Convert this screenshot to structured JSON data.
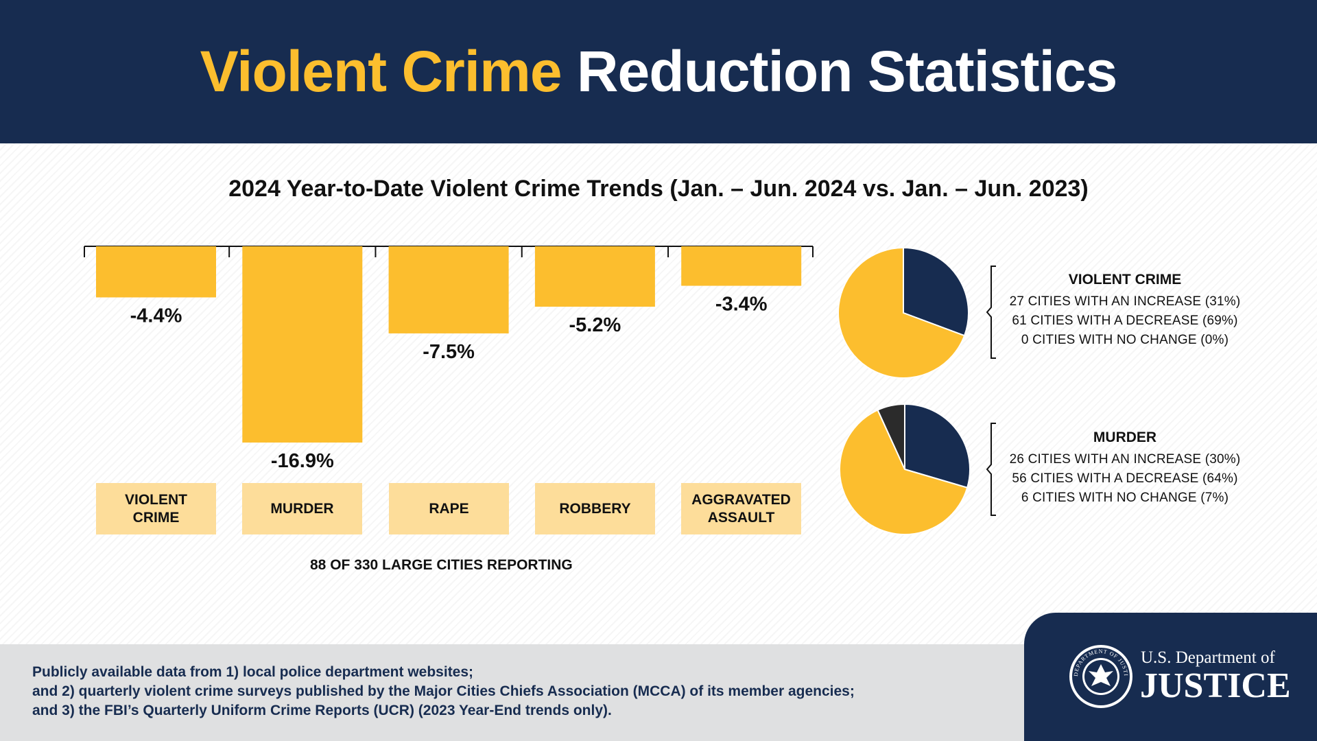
{
  "header": {
    "title_highlight": "Violent Crime",
    "title_rest": "Reduction Statistics"
  },
  "colors": {
    "navy": "#172c50",
    "gold": "#fcbe2e",
    "gold_light": "#fddd9a",
    "dark": "#2b2b2b"
  },
  "chart_data": [
    {
      "type": "bar",
      "title": "2024 Year-to-Date Violent Crime Trends (Jan. – Jun. 2024 vs. Jan. – Jun. 2023)",
      "categories": [
        "VIOLENT\nCRIME",
        "MURDER",
        "RAPE",
        "ROBBERY",
        "AGGRAVATED\nASSAULT"
      ],
      "values": [
        -4.4,
        -16.9,
        -7.5,
        -5.2,
        -3.4
      ],
      "value_labels": [
        "-4.4%",
        "-16.9%",
        "-7.5%",
        "-5.2%",
        "-3.4%"
      ],
      "ylim": [
        -16.9,
        0
      ],
      "note": "88 OF 330 LARGE CITIES REPORTING"
    },
    {
      "type": "pie",
      "title": "VIOLENT CRIME",
      "slices": [
        {
          "label": "27 CITIES WITH AN INCREASE (31%)",
          "value": 27,
          "color": "#172c50"
        },
        {
          "label": "61 CITIES WITH A DECREASE (69%)",
          "value": 61,
          "color": "#fcbe2e"
        },
        {
          "label": "0 CITIES WITH NO CHANGE (0%)",
          "value": 0,
          "color": "#2b2b2b"
        }
      ]
    },
    {
      "type": "pie",
      "title": "MURDER",
      "slices": [
        {
          "label": "26 CITIES WITH AN INCREASE (30%)",
          "value": 26,
          "color": "#172c50"
        },
        {
          "label": "56 CITIES WITH A DECREASE (64%)",
          "value": 56,
          "color": "#fcbe2e"
        },
        {
          "label": "6 CITIES WITH NO CHANGE (7%)",
          "value": 6,
          "color": "#2b2b2b"
        }
      ]
    }
  ],
  "footer": {
    "lines": [
      "Publicly available data from 1) local police department websites;",
      "and 2) quarterly violent crime surveys published by the Major Cities Chiefs Association (MCCA) of its member agencies;",
      "and 3) the FBI’s Quarterly Uniform Crime Reports (UCR) (2023 Year-End trends only)."
    ]
  },
  "logo": {
    "line1": "U.S. Department of",
    "line2": "JUSTICE",
    "seal_text": "DEPARTMENT OF JUSTICE"
  }
}
